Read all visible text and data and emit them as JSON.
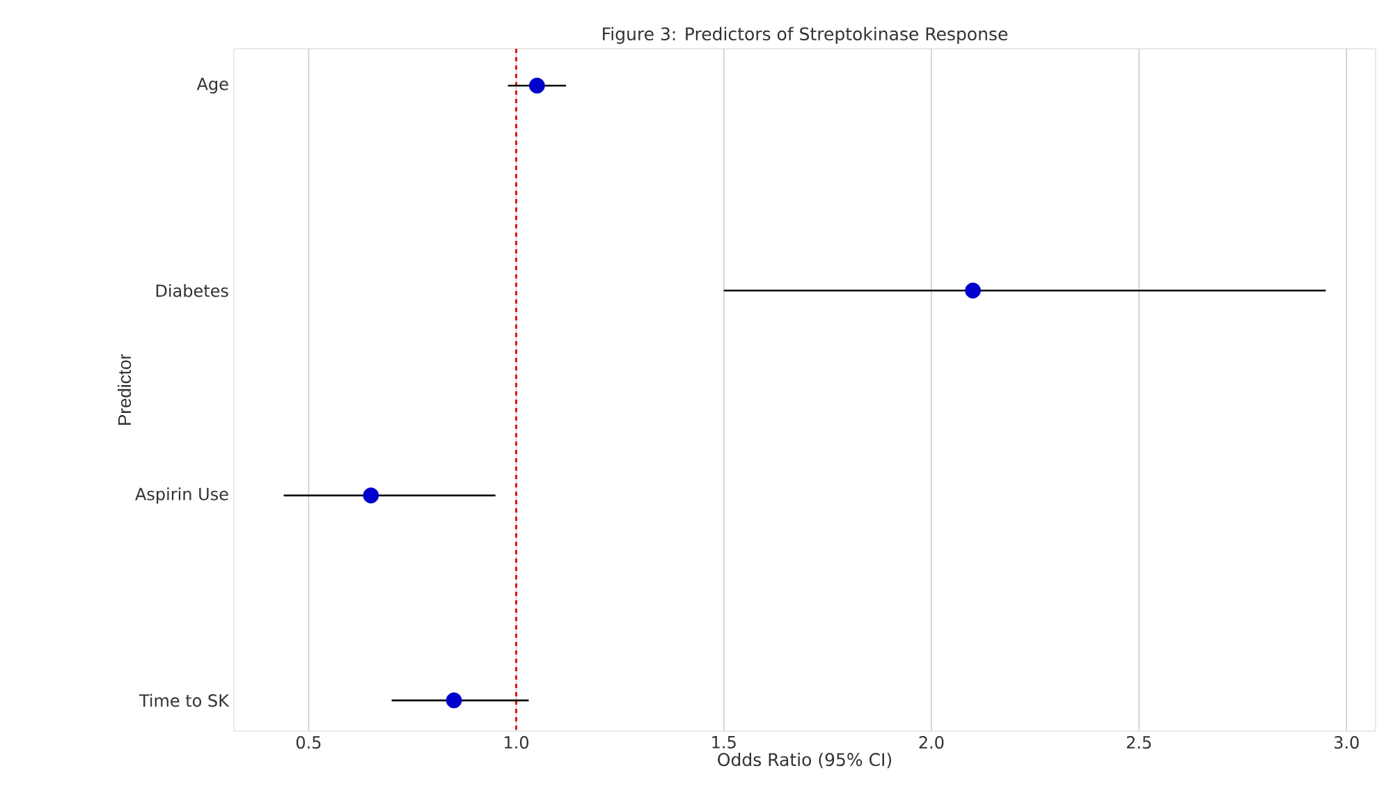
{
  "chart_data": {
    "type": "scatter",
    "orientation": "horizontal",
    "title": "Figure 3: Predictors of Streptokinase Response",
    "xlabel": "Odds Ratio (95% CI)",
    "ylabel": "Predictor",
    "categories": [
      "Age",
      "Diabetes",
      "Aspirin Use",
      "Time to SK"
    ],
    "series": [
      {
        "color": "#0000cc",
        "values": [
          1.05,
          2.1,
          0.65,
          0.85
        ],
        "errors": [
          [
            0.98,
            1.12
          ],
          [
            1.5,
            2.95
          ],
          [
            0.44,
            0.95
          ],
          [
            0.7,
            1.03
          ]
        ]
      }
    ],
    "xlim": [
      0.32,
      3.07
    ],
    "xticks": [
      {
        "value": 0.5,
        "label": "0.5"
      },
      {
        "value": 1.0,
        "label": "1.0"
      },
      {
        "value": 1.5,
        "label": "1.5"
      },
      {
        "value": 2.0,
        "label": "2.0"
      },
      {
        "value": 2.5,
        "label": "2.5"
      },
      {
        "value": 3.0,
        "label": "3.0"
      }
    ],
    "ref_lines": [
      {
        "axis": "x",
        "value": 1.0,
        "color": "#dd0000",
        "line_style": "dashed"
      }
    ],
    "grid": "x",
    "marker": "circle"
  }
}
